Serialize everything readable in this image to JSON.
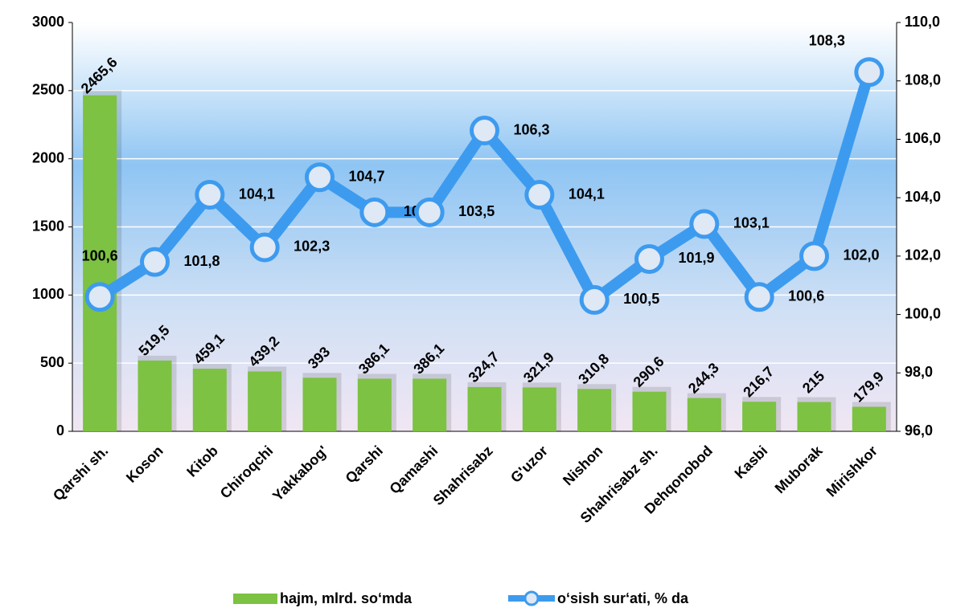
{
  "chart_data": {
    "type": "bar-line",
    "categories": [
      "Qarshi sh.",
      "Koson",
      "Kitob",
      "Chiroqchi",
      "Yakkabog'",
      "Qarshi",
      "Qamashi",
      "Shahrisabz",
      "G'uzor",
      "Nishon",
      "Shahrisabz sh.",
      "Dehqonobod",
      "Kasbi",
      "Muborak",
      "Mirishkor"
    ],
    "series": [
      {
        "name": "hajm, mlrd. so‘mda",
        "type": "bar",
        "color": "#7dc242",
        "values": [
          2465.6,
          519.5,
          459.1,
          439.2,
          393,
          386.1,
          386.1,
          324.7,
          321.9,
          310.8,
          290.6,
          244.3,
          216.7,
          215,
          179.9
        ],
        "value_labels": [
          "2465,6",
          "519,5",
          "459,1",
          "439,2",
          "393",
          "386,1",
          "386,1",
          "324,7",
          "321,9",
          "310,8",
          "290,6",
          "244,3",
          "216,7",
          "215",
          "179,9"
        ]
      },
      {
        "name": "o‘sish sur‘ati, % da",
        "type": "line",
        "axis": "y2",
        "color": "#3d9bef",
        "values": [
          100.6,
          101.8,
          104.1,
          102.3,
          104.7,
          103.5,
          103.5,
          106.3,
          104.1,
          100.5,
          101.9,
          103.1,
          100.6,
          102.0,
          108.3
        ],
        "value_labels": [
          "100,6",
          "101,8",
          "104,1",
          "102,3",
          "104,7",
          "103,5",
          "103,5",
          "106,3",
          "104,1",
          "100,5",
          "101,9",
          "103,1",
          "100,6",
          "102,0",
          "108,3"
        ]
      }
    ],
    "ylim": [
      0,
      3000
    ],
    "yticks": [
      0,
      500,
      1000,
      1500,
      2000,
      2500,
      3000
    ],
    "y2lim": [
      96,
      110
    ],
    "y2ticks": [
      {
        "value": 96,
        "label": "96,0"
      },
      {
        "value": 98,
        "label": "98,0"
      },
      {
        "value": 100,
        "label": "100,0"
      },
      {
        "value": 102,
        "label": "102,0"
      },
      {
        "value": 104,
        "label": "104,0"
      },
      {
        "value": 106,
        "label": "106,0"
      },
      {
        "value": 108,
        "label": "108,0"
      },
      {
        "value": 110,
        "label": "110,0"
      }
    ],
    "grid": true,
    "legend": "bottom"
  }
}
